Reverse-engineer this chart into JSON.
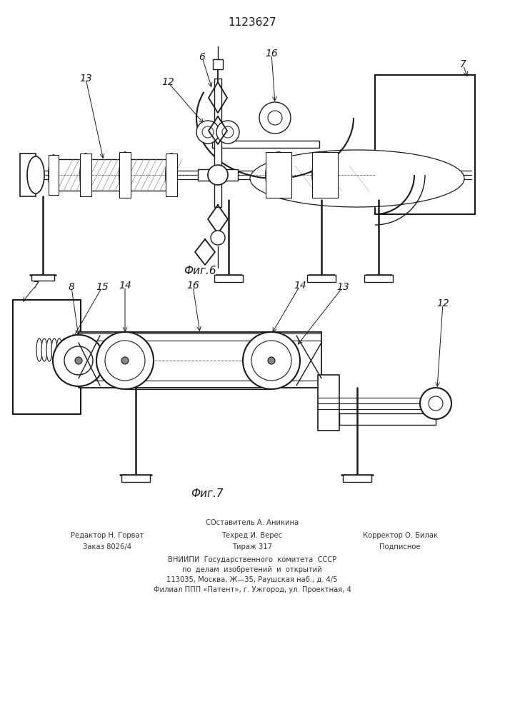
{
  "title": "1123627",
  "fig6_label": "Фиг.6",
  "fig7_label": "Фиг.7",
  "footer_line1": "СОставитель А. Аникина",
  "footer_line2_left": "Редактор Н. Горват",
  "footer_line2_center": "Техред И. Верес",
  "footer_line2_right": "Корректор О. Билак",
  "footer_line3_left": "Заказ 8026/4",
  "footer_line3_center": "Тираж 317",
  "footer_line3_right": "Подписное",
  "footer_line4": "ВНИИПИ  Государственного  комитета  СССР",
  "footer_line5": "по  делам  изобретений  и  открытий",
  "footer_line6": "113035, Москва, Ж—35, Раушская наб., д. 4/5",
  "footer_line7": "Филиал ППП «Патент», г. Ужгород, ул. Проектная, 4",
  "bg_color": "#ffffff",
  "line_color": "#1a1a1a"
}
